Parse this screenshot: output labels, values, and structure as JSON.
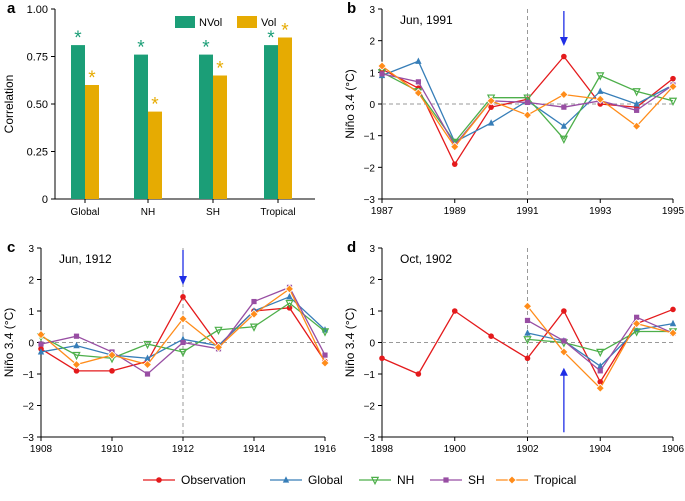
{
  "colors": {
    "Observation": "#e41a1c",
    "Global": "#377eb8",
    "NH": "#4daf4a",
    "SH": "#984ea3",
    "Tropical": "#ff8c1a",
    "NVol": "#1b9e77",
    "Vol": "#e6ab02",
    "arrow": "#1f2ee6"
  },
  "chart_data": [
    {
      "panel": "a",
      "type": "bar",
      "ylabel": "Correlation",
      "ylim": [
        0,
        1
      ],
      "yticks": [
        "0",
        "0.25",
        "0.50",
        "0.75",
        "1.00"
      ],
      "yticks_values": [
        0,
        0.25,
        0.5,
        0.75,
        1.0
      ],
      "categories": [
        "Global",
        "NH",
        "SH",
        "Tropical"
      ],
      "series": [
        {
          "name": "NVol",
          "values": [
            0.81,
            0.76,
            0.76,
            0.81
          ]
        },
        {
          "name": "Vol",
          "values": [
            0.6,
            0.46,
            0.65,
            0.85
          ]
        }
      ],
      "star_symbol": "*",
      "legend_position": "top-right"
    },
    {
      "panel": "b",
      "type": "line",
      "title": "Jun, 1991",
      "ylabel": "Niño 3.4 (°C)",
      "xlim": [
        1987,
        1995
      ],
      "ylim": [
        -3,
        3
      ],
      "xticks": [
        "1987",
        "1989",
        "1991",
        "1993",
        "1995"
      ],
      "xticks_values": [
        1987,
        1989,
        1991,
        1993,
        1995
      ],
      "yticks": [
        "−3",
        "−2",
        "−1",
        "0",
        "1",
        "2",
        "3"
      ],
      "yticks_values": [
        -3,
        -2,
        -1,
        0,
        1,
        2,
        3
      ],
      "event_year": 1991,
      "arrow_year": 1992,
      "arrow_direction": "down",
      "x": [
        1987,
        1988,
        1989,
        1990,
        1991,
        1992,
        1993,
        1994,
        1995
      ],
      "series": [
        {
          "name": "Observation",
          "values": [
            1.1,
            0.5,
            -1.9,
            -0.1,
            0.15,
            1.5,
            0.0,
            -0.1,
            0.8
          ]
        },
        {
          "name": "Global",
          "values": [
            0.9,
            1.35,
            -1.2,
            -0.6,
            0.1,
            -0.7,
            0.4,
            0.0,
            0.6
          ]
        },
        {
          "name": "NH",
          "values": [
            1.0,
            0.4,
            -1.2,
            0.2,
            0.2,
            -1.1,
            0.9,
            0.4,
            0.1
          ]
        },
        {
          "name": "SH",
          "values": [
            0.95,
            0.7,
            -1.3,
            0.1,
            0.05,
            -0.1,
            0.1,
            -0.2,
            0.6
          ]
        },
        {
          "name": "Tropical",
          "values": [
            1.2,
            0.35,
            -1.35,
            0.1,
            -0.35,
            0.3,
            0.15,
            -0.7,
            0.55
          ]
        }
      ]
    },
    {
      "panel": "c",
      "type": "line",
      "title": "Jun, 1912",
      "ylabel": "Niño 3.4 (°C)",
      "xlim": [
        1908,
        1916
      ],
      "ylim": [
        -3,
        3
      ],
      "xticks": [
        "1908",
        "1910",
        "1912",
        "1914",
        "1916"
      ],
      "xticks_values": [
        1908,
        1910,
        1912,
        1914,
        1916
      ],
      "yticks": [
        "−3",
        "−2",
        "−1",
        "0",
        "1",
        "2",
        "3"
      ],
      "yticks_values": [
        -3,
        -2,
        -1,
        0,
        1,
        2,
        3
      ],
      "event_year": 1912,
      "arrow_year": 1912,
      "arrow_direction": "down",
      "x": [
        1908,
        1909,
        1910,
        1911,
        1912,
        1913,
        1914,
        1915,
        1916
      ],
      "series": [
        {
          "name": "Observation",
          "values": [
            -0.2,
            -0.9,
            -0.9,
            -0.6,
            1.45,
            -0.1,
            1.0,
            1.1,
            -0.6
          ]
        },
        {
          "name": "Global",
          "values": [
            -0.3,
            -0.1,
            -0.4,
            -0.5,
            0.1,
            -0.1,
            1.0,
            1.45,
            0.4
          ]
        },
        {
          "name": "NH",
          "values": [
            0.2,
            -0.4,
            -0.5,
            -0.05,
            -0.3,
            0.4,
            0.5,
            1.25,
            0.35
          ]
        },
        {
          "name": "SH",
          "values": [
            -0.05,
            0.2,
            -0.3,
            -1.0,
            0.0,
            -0.2,
            1.3,
            1.75,
            -0.4
          ]
        },
        {
          "name": "Tropical",
          "values": [
            0.25,
            -0.7,
            -0.4,
            -0.7,
            0.75,
            -0.15,
            0.9,
            1.7,
            -0.65
          ]
        }
      ]
    },
    {
      "panel": "d",
      "type": "line",
      "title": "Oct, 1902",
      "ylabel": "Niño 3.4 (°C)",
      "xlim": [
        1898,
        1906
      ],
      "ylim": [
        -3,
        3
      ],
      "xticks": [
        "1898",
        "1900",
        "1902",
        "1904",
        "1906"
      ],
      "xticks_values": [
        1898,
        1900,
        1902,
        1904,
        1906
      ],
      "yticks": [
        "−3",
        "−2",
        "−1",
        "0",
        "1",
        "2",
        "3"
      ],
      "yticks_values": [
        -3,
        -2,
        -1,
        0,
        1,
        2,
        3
      ],
      "event_year": 1902,
      "arrow_year": 1903,
      "arrow_direction": "up",
      "x": [
        1898,
        1899,
        1900,
        1901,
        1902,
        1903,
        1904,
        1905,
        1906
      ],
      "series": [
        {
          "name": "Observation",
          "x": [
            1898,
            1899,
            1900,
            1901,
            1902,
            1903,
            1904,
            1905,
            1906
          ],
          "values": [
            -0.5,
            -1.0,
            1.0,
            0.2,
            -0.5,
            1.0,
            -1.25,
            0.6,
            1.05
          ]
        },
        {
          "name": "Global",
          "x": [
            1902,
            1903,
            1904,
            1905,
            1906
          ],
          "values": [
            0.3,
            0.05,
            -0.75,
            0.4,
            0.6
          ]
        },
        {
          "name": "NH",
          "x": [
            1902,
            1903,
            1904,
            1905,
            1906
          ],
          "values": [
            0.1,
            0.0,
            -0.3,
            0.35,
            0.35
          ]
        },
        {
          "name": "SH",
          "x": [
            1902,
            1903,
            1904,
            1905,
            1906
          ],
          "values": [
            0.7,
            0.05,
            -0.9,
            0.8,
            0.3
          ]
        },
        {
          "name": "Tropical",
          "x": [
            1902,
            1903,
            1904,
            1905,
            1906
          ],
          "values": [
            1.15,
            -0.3,
            -1.45,
            0.6,
            0.3
          ]
        }
      ]
    }
  ],
  "panel_labels": [
    "a",
    "b",
    "c",
    "d"
  ],
  "legend": {
    "bar_items": [
      "NVol",
      "Vol"
    ],
    "line_items": [
      "Observation",
      "Global",
      "NH",
      "SH",
      "Tropical"
    ]
  }
}
